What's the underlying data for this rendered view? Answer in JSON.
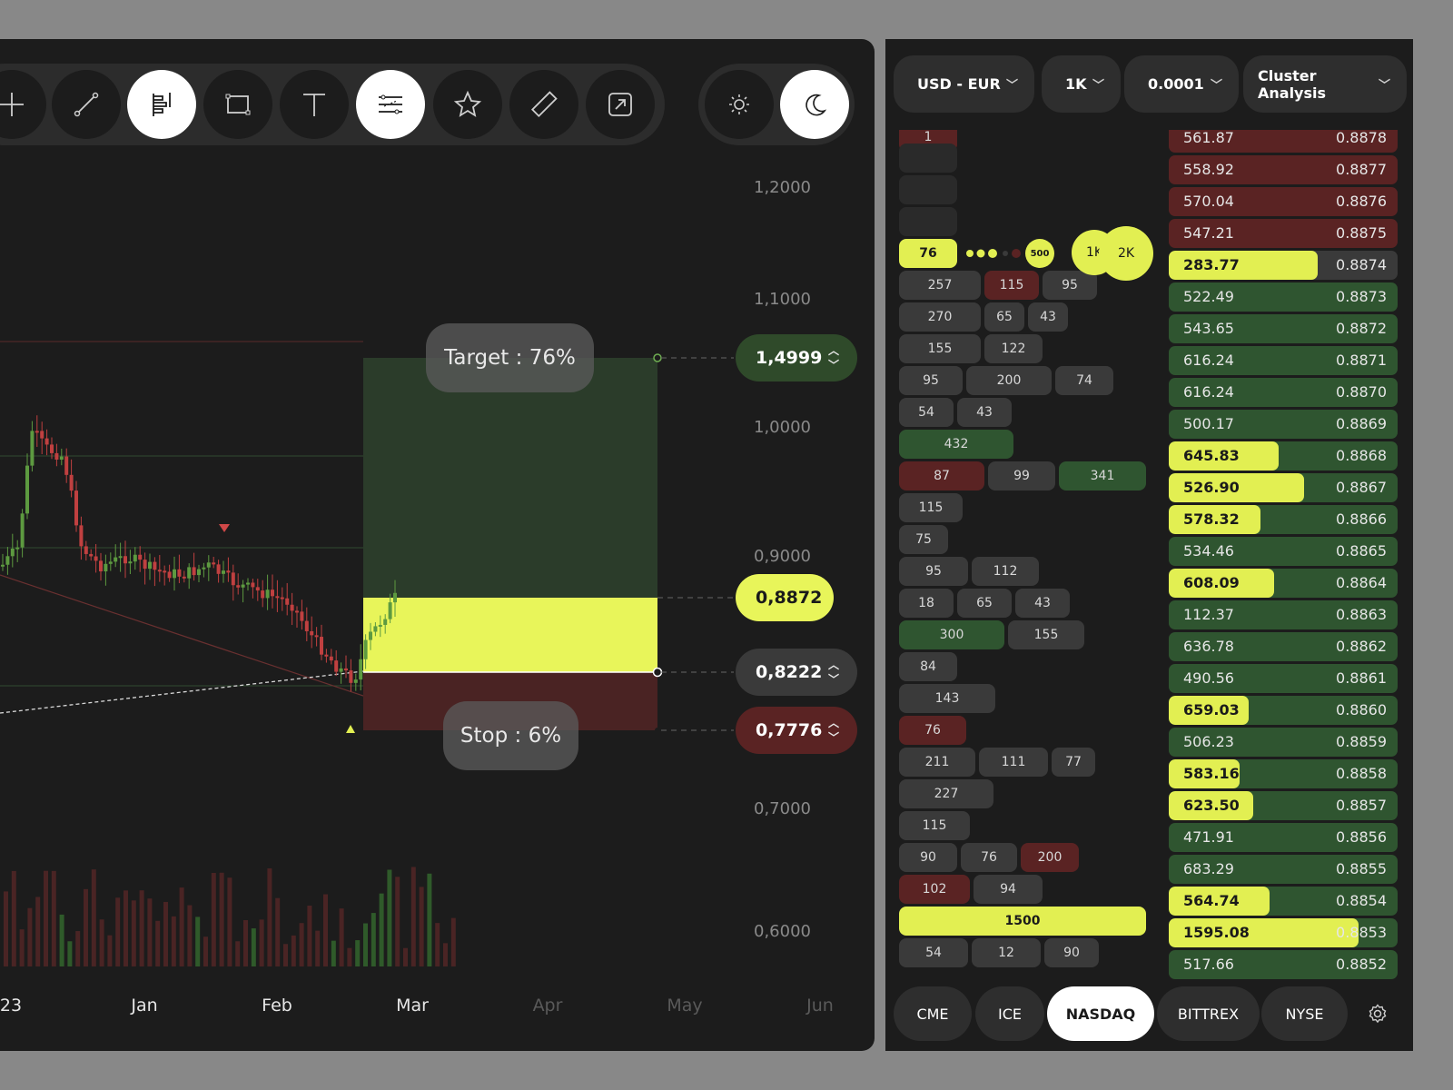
{
  "toolbar": {
    "tools": [
      "crosshair-icon",
      "line-icon",
      "flag-icon",
      "rectangle-icon",
      "text-icon",
      "lines-icon",
      "star-icon",
      "ruler-icon",
      "expand-icon"
    ],
    "active": [
      "flag-icon",
      "lines-icon"
    ],
    "theme_active": "moon-icon"
  },
  "chart": {
    "y_labels": [
      "1,2000",
      "1,1000",
      "1,0000",
      "0,9000",
      "0,7000",
      "0,6000"
    ],
    "x_labels": [
      "23",
      "Jan",
      "Feb",
      "Mar",
      "Apr",
      "May",
      "Jun"
    ],
    "target_label": "Target : 76%",
    "stop_label": "Stop : 6%",
    "tags": {
      "target": "1,4999",
      "current": "0,8872",
      "entry": "0,8222",
      "stop": "0,7776"
    },
    "colors": {
      "accent": "#e2ef52",
      "green": "#2f5530",
      "red": "#5a2323"
    }
  },
  "book": {
    "pair": "USD - EUR",
    "size": "1K",
    "tick": "0.0001",
    "mode": "Cluster Analysis",
    "legend": {
      "first": "76",
      "mid": "500",
      "a": "1K",
      "b": "2K"
    },
    "clusters": [
      {
        "y": -8,
        "cells": [
          {
            "w": 64,
            "v": "1",
            "c": "red"
          }
        ]
      },
      {
        "y": 15,
        "cells": [
          {
            "w": 64,
            "v": "",
            "c": "empty"
          }
        ]
      },
      {
        "y": 50,
        "cells": [
          {
            "w": 64,
            "v": "",
            "c": "empty"
          }
        ]
      },
      {
        "y": 85,
        "cells": [
          {
            "w": 64,
            "v": "",
            "c": "empty"
          }
        ]
      },
      {
        "y": 155,
        "cells": [
          {
            "w": 90,
            "v": "257"
          },
          {
            "w": 60,
            "v": "115",
            "c": "red"
          },
          {
            "w": 60,
            "v": "95"
          }
        ]
      },
      {
        "y": 190,
        "cells": [
          {
            "w": 90,
            "v": "270"
          },
          {
            "w": 44,
            "v": "65"
          },
          {
            "w": 44,
            "v": "43"
          }
        ]
      },
      {
        "y": 225,
        "cells": [
          {
            "w": 90,
            "v": "155"
          },
          {
            "w": 64,
            "v": "122"
          }
        ]
      },
      {
        "y": 260,
        "cells": [
          {
            "w": 70,
            "v": "95"
          },
          {
            "w": 94,
            "v": "200"
          },
          {
            "w": 64,
            "v": "74"
          }
        ]
      },
      {
        "y": 295,
        "cells": [
          {
            "w": 60,
            "v": "54"
          },
          {
            "w": 60,
            "v": "43"
          }
        ]
      },
      {
        "y": 330,
        "cells": [
          {
            "w": 126,
            "v": "432",
            "c": "green"
          }
        ]
      },
      {
        "y": 365,
        "cells": [
          {
            "w": 94,
            "v": "87",
            "c": "red"
          },
          {
            "w": 74,
            "v": "99"
          },
          {
            "w": 96,
            "v": "341",
            "c": "green"
          }
        ]
      },
      {
        "y": 400,
        "cells": [
          {
            "w": 70,
            "v": "115"
          }
        ]
      },
      {
        "y": 435,
        "cells": [
          {
            "w": 54,
            "v": "75"
          }
        ]
      },
      {
        "y": 470,
        "cells": [
          {
            "w": 76,
            "v": "95"
          },
          {
            "w": 74,
            "v": "112"
          }
        ]
      },
      {
        "y": 505,
        "cells": [
          {
            "w": 60,
            "v": "18"
          },
          {
            "w": 60,
            "v": "65"
          },
          {
            "w": 60,
            "v": "43"
          }
        ]
      },
      {
        "y": 540,
        "cells": [
          {
            "w": 116,
            "v": "300",
            "c": "green"
          },
          {
            "w": 84,
            "v": "155"
          }
        ]
      },
      {
        "y": 575,
        "cells": [
          {
            "w": 64,
            "v": "84"
          }
        ]
      },
      {
        "y": 610,
        "cells": [
          {
            "w": 106,
            "v": "143"
          }
        ]
      },
      {
        "y": 645,
        "cells": [
          {
            "w": 74,
            "v": "76",
            "c": "red"
          }
        ]
      },
      {
        "y": 680,
        "cells": [
          {
            "w": 84,
            "v": "211"
          },
          {
            "w": 76,
            "v": "111"
          },
          {
            "w": 48,
            "v": "77"
          }
        ]
      },
      {
        "y": 715,
        "cells": [
          {
            "w": 104,
            "v": "227"
          }
        ]
      },
      {
        "y": 750,
        "cells": [
          {
            "w": 78,
            "v": "115"
          }
        ]
      },
      {
        "y": 785,
        "cells": [
          {
            "w": 64,
            "v": "90"
          },
          {
            "w": 62,
            "v": "76"
          },
          {
            "w": 64,
            "v": "200",
            "c": "red"
          }
        ]
      },
      {
        "y": 820,
        "cells": [
          {
            "w": 78,
            "v": "102",
            "c": "red"
          },
          {
            "w": 76,
            "v": "94"
          }
        ]
      },
      {
        "y": 855,
        "cells": [
          {
            "w": 272,
            "v": "1500",
            "c": "yellow"
          }
        ]
      },
      {
        "y": 890,
        "cells": [
          {
            "w": 76,
            "v": "54"
          },
          {
            "w": 76,
            "v": "12"
          },
          {
            "w": 60,
            "v": "90"
          }
        ]
      }
    ],
    "prices": [
      {
        "v": "561.87",
        "p": "0.8878",
        "c": "red",
        "f": 0
      },
      {
        "v": "558.92",
        "p": "0.8877",
        "c": "red",
        "f": 0
      },
      {
        "v": "570.04",
        "p": "0.8876",
        "c": "red",
        "f": 0
      },
      {
        "v": "547.21",
        "p": "0.8875",
        "c": "red",
        "f": 0
      },
      {
        "v": "283.77",
        "p": "0.8874",
        "c": "grey",
        "f": 0.65
      },
      {
        "v": "522.49",
        "p": "0.8873",
        "c": "green",
        "f": 0
      },
      {
        "v": "543.65",
        "p": "0.8872",
        "c": "green",
        "f": 0
      },
      {
        "v": "616.24",
        "p": "0.8871",
        "c": "green",
        "f": 0
      },
      {
        "v": "616.24",
        "p": "0.8870",
        "c": "green",
        "f": 0
      },
      {
        "v": "500.17",
        "p": "0.8869",
        "c": "green",
        "f": 0
      },
      {
        "v": "645.83",
        "p": "0.8868",
        "c": "green",
        "f": 0.48
      },
      {
        "v": "526.90",
        "p": "0.8867",
        "c": "green",
        "f": 0.59
      },
      {
        "v": "578.32",
        "p": "0.8866",
        "c": "green",
        "f": 0.4
      },
      {
        "v": "534.46",
        "p": "0.8865",
        "c": "green",
        "f": 0
      },
      {
        "v": "608.09",
        "p": "0.8864",
        "c": "green",
        "f": 0.46
      },
      {
        "v": "112.37",
        "p": "0.8863",
        "c": "green",
        "f": 0
      },
      {
        "v": "636.78",
        "p": "0.8862",
        "c": "green",
        "f": 0
      },
      {
        "v": "490.56",
        "p": "0.8861",
        "c": "green",
        "f": 0
      },
      {
        "v": "659.03",
        "p": "0.8860",
        "c": "green",
        "f": 0.35
      },
      {
        "v": "506.23",
        "p": "0.8859",
        "c": "green",
        "f": 0
      },
      {
        "v": "583.16",
        "p": "0.8858",
        "c": "green",
        "f": 0.31
      },
      {
        "v": "623.50",
        "p": "0.8857",
        "c": "green",
        "f": 0.37
      },
      {
        "v": "471.91",
        "p": "0.8856",
        "c": "green",
        "f": 0
      },
      {
        "v": "683.29",
        "p": "0.8855",
        "c": "green",
        "f": 0
      },
      {
        "v": "564.74",
        "p": "0.8854",
        "c": "green",
        "f": 0.44
      },
      {
        "v": "1595.08",
        "p": "0.8853",
        "c": "green",
        "f": 0.83
      },
      {
        "v": "517.66",
        "p": "0.8852",
        "c": "green",
        "f": 0
      }
    ],
    "exchanges": [
      "CME",
      "ICE",
      "NASDAQ",
      "BITTREX",
      "NYSE"
    ],
    "active_exchange": "NASDAQ"
  }
}
